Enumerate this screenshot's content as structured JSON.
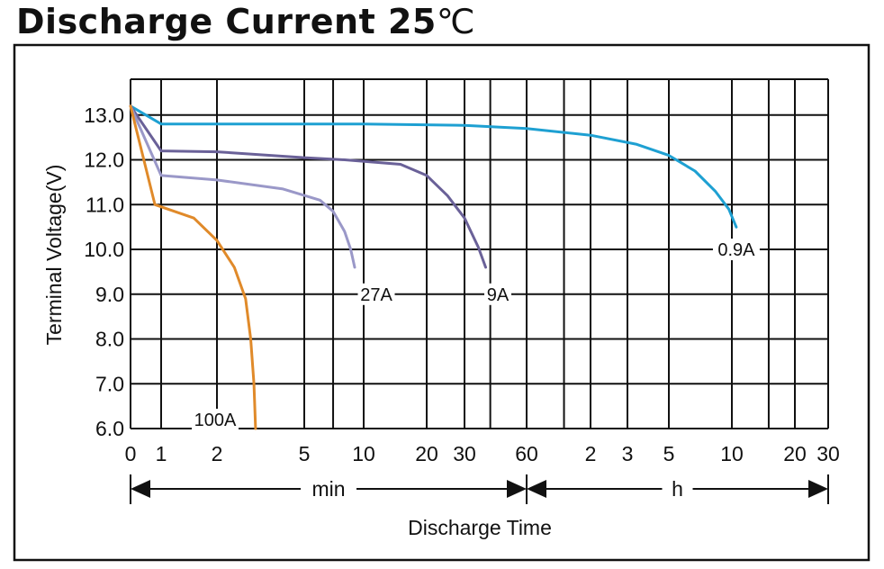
{
  "title": {
    "main": "Discharge Current 25",
    "unit": "℃"
  },
  "chart_data": {
    "type": "line",
    "title": "Discharge Current 25℃",
    "xlabel": "Discharge Time",
    "ylabel": "Terminal Voltage(V)",
    "ylim": [
      6.0,
      13.8
    ],
    "y_ticks": [
      "6.0",
      "7.0",
      "8.0",
      "9.0",
      "10.0",
      "11.0",
      "12.0",
      "13.0"
    ],
    "x_scale": "log (minutes)",
    "x_ticks": [
      {
        "label": "0",
        "minutes": 0.45
      },
      {
        "label": "1",
        "minutes": 1
      },
      {
        "label": "2",
        "minutes": 2
      },
      {
        "label": "5",
        "minutes": 5
      },
      {
        "label": "10",
        "minutes": 10
      },
      {
        "label": "20",
        "minutes": 20
      },
      {
        "label": "30",
        "minutes": 30
      },
      {
        "label": "60",
        "minutes": 60
      },
      {
        "label": "2",
        "minutes": 120
      },
      {
        "label": "3",
        "minutes": 180
      },
      {
        "label": "5",
        "minutes": 300
      },
      {
        "label": "10",
        "minutes": 600
      },
      {
        "label": "20",
        "minutes": 1200
      },
      {
        "label": "30",
        "minutes": 1800
      }
    ],
    "extra_grid_minutes": [
      7,
      40,
      90,
      900
    ],
    "grid": true,
    "ranges": [
      {
        "label": "min",
        "from": 0.45,
        "to": 60
      },
      {
        "label": "h",
        "from": 60,
        "to": 1800
      }
    ],
    "series": [
      {
        "name": "0.9A",
        "color": "#1ea0d2",
        "points": [
          [
            0.45,
            13.2
          ],
          [
            1.0,
            12.8
          ],
          [
            3,
            12.8
          ],
          [
            10,
            12.8
          ],
          [
            30,
            12.77
          ],
          [
            60,
            12.7
          ],
          [
            120,
            12.55
          ],
          [
            200,
            12.35
          ],
          [
            300,
            12.1
          ],
          [
            400,
            11.75
          ],
          [
            500,
            11.3
          ],
          [
            580,
            10.9
          ],
          [
            630,
            10.5
          ]
        ]
      },
      {
        "name": "9A",
        "color": "#6a6198",
        "points": [
          [
            0.45,
            13.2
          ],
          [
            1.0,
            12.2
          ],
          [
            2,
            12.18
          ],
          [
            5,
            12.05
          ],
          [
            8,
            12.0
          ],
          [
            15,
            11.9
          ],
          [
            20,
            11.65
          ],
          [
            25,
            11.2
          ],
          [
            30,
            10.7
          ],
          [
            35,
            10.05
          ],
          [
            38,
            9.6
          ]
        ]
      },
      {
        "name": "27A",
        "color": "#9a98c8",
        "points": [
          [
            0.45,
            13.2
          ],
          [
            1.0,
            11.65
          ],
          [
            2,
            11.55
          ],
          [
            4,
            11.35
          ],
          [
            6,
            11.1
          ],
          [
            7,
            10.85
          ],
          [
            8,
            10.4
          ],
          [
            8.6,
            10.0
          ],
          [
            9,
            9.6
          ]
        ]
      },
      {
        "name": "100A",
        "color": "#e08a2a",
        "points": [
          [
            0.45,
            13.2
          ],
          [
            0.85,
            11.0
          ],
          [
            1.5,
            10.7
          ],
          [
            2,
            10.2
          ],
          [
            2.4,
            9.6
          ],
          [
            2.7,
            8.9
          ],
          [
            2.85,
            8.0
          ],
          [
            2.95,
            7.0
          ],
          [
            3.0,
            6.0
          ]
        ]
      }
    ],
    "annotations": [
      {
        "text": "0.9A",
        "series": "0.9A"
      },
      {
        "text": "9A",
        "series": "9A"
      },
      {
        "text": "27A",
        "series": "27A"
      },
      {
        "text": "100A",
        "series": "100A"
      }
    ]
  }
}
